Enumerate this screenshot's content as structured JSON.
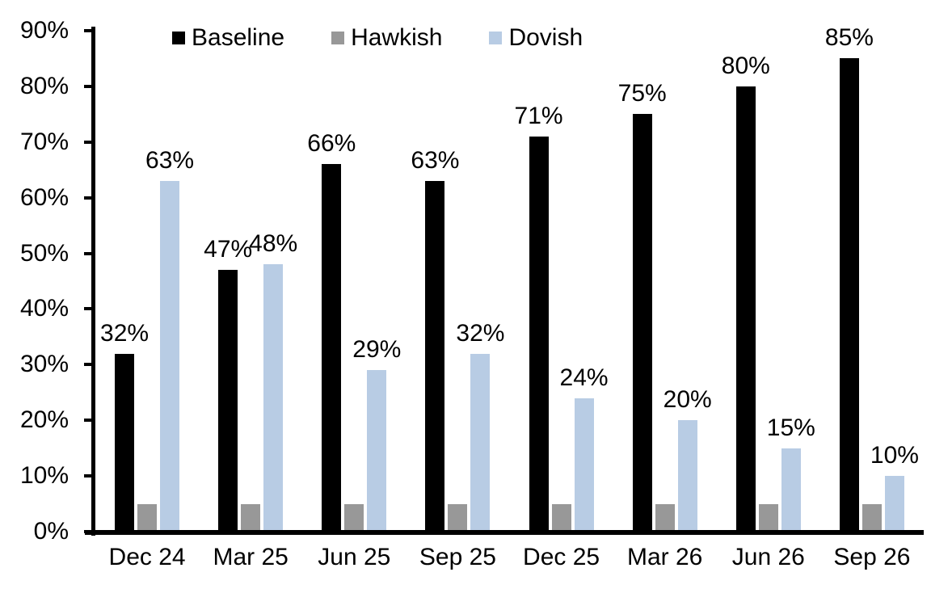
{
  "chart_data": {
    "type": "bar",
    "title": "",
    "categories": [
      "Dec 24",
      "Mar 25",
      "Jun 25",
      "Sep 25",
      "Dec 25",
      "Mar 26",
      "Jun 26",
      "Sep 26"
    ],
    "series": [
      {
        "name": "Baseline",
        "color": "#000000",
        "values": [
          32,
          47,
          66,
          63,
          71,
          75,
          80,
          85
        ],
        "data_labels": [
          "32%",
          "47%",
          "66%",
          "63%",
          "71%",
          "75%",
          "80%",
          "85%"
        ]
      },
      {
        "name": "Hawkish",
        "color": "#989898",
        "values": [
          5,
          5,
          5,
          5,
          5,
          5,
          5,
          5
        ],
        "data_labels": [
          "",
          "",
          "",
          "",
          "",
          "",
          "",
          ""
        ]
      },
      {
        "name": "Dovish",
        "color": "#b8cce4",
        "values": [
          63,
          48,
          29,
          32,
          24,
          20,
          15,
          10
        ],
        "data_labels": [
          "63%",
          "48%",
          "29%",
          "32%",
          "24%",
          "20%",
          "15%",
          "10%"
        ]
      }
    ],
    "y_axis": {
      "tick_labels": [
        "0%",
        "10%",
        "20%",
        "30%",
        "40%",
        "50%",
        "60%",
        "70%",
        "80%",
        "90%"
      ],
      "tick_values": [
        0,
        10,
        20,
        30,
        40,
        50,
        60,
        70,
        80,
        90
      ],
      "min": 0,
      "max": 90
    },
    "xlabel": "",
    "ylabel": "",
    "grid": false,
    "legend_position": "top",
    "axis_color": "#000000",
    "background_color": "#ffffff"
  }
}
